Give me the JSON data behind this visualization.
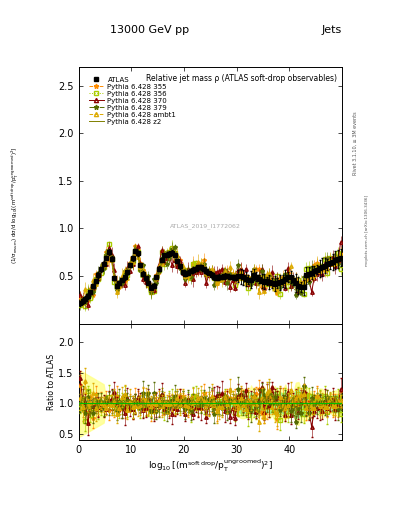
{
  "title_top": "13000 GeV pp",
  "title_right": "Jets",
  "main_title": "Relative jet mass ρ (ATLAS soft-drop observables)",
  "xlabel": "log$_{10}$[(m$^{\\rm soft\\,drop}$/p$_{\\rm T}^{\\rm ungroomed}$)$^2$]",
  "ylabel_main": "(1/σ$_{\\rm resum}$) dσ/d log$_{10}$[(m$^{\\rm soft\\,drop}$/p$_{\\rm T}^{\\rm ungroomed}$)$^2$]",
  "ylabel_ratio": "Ratio to ATLAS",
  "watermark": "ATLAS_2019_I1772062",
  "rivet_text": "Rivet 3.1.10, ≥ 3M events",
  "inspire_text": "mcplots.cern.ch [arXiv:1306.3436]",
  "xlim": [
    0,
    50
  ],
  "ylim_main": [
    0.0,
    2.7
  ],
  "ylim_ratio": [
    0.4,
    2.3
  ],
  "yticks_main": [
    0.5,
    1.0,
    1.5,
    2.0,
    2.5
  ],
  "yticks_ratio": [
    0.5,
    1.0,
    1.5,
    2.0
  ],
  "xticks": [
    0,
    10,
    20,
    30,
    40
  ],
  "xticklabels": [
    "0",
    "10",
    "20",
    "30",
    "40"
  ],
  "colors": {
    "atlas_data": "#000000",
    "p355": "#FF8C00",
    "p356": "#AACC00",
    "p370": "#880000",
    "p379": "#556B00",
    "pambt1": "#DDAA00",
    "pz2": "#808000"
  },
  "legend_entries": [
    "ATLAS",
    "Pythia 6.428 355",
    "Pythia 6.428 356",
    "Pythia 6.428 370",
    "Pythia 6.428 379",
    "Pythia 6.428 ambt1",
    "Pythia 6.428 z2"
  ],
  "background_color": "#ffffff",
  "ratio_band_yellow": "#FFFF88",
  "ratio_band_green": "#88EE88",
  "ratio_line_color": "#00BB00"
}
